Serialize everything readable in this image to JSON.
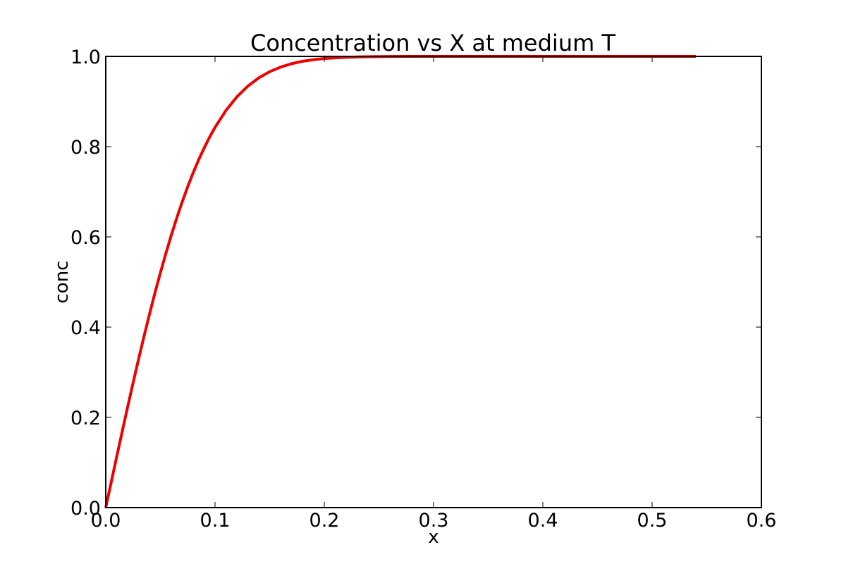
{
  "chart_data": {
    "type": "line",
    "title": "Concentration vs X at medium T",
    "xlabel": "x",
    "ylabel": "conc",
    "xlim": [
      0.0,
      0.6
    ],
    "ylim": [
      0.0,
      1.0
    ],
    "xticks": [
      "0.0",
      "0.1",
      "0.2",
      "0.3",
      "0.4",
      "0.5",
      "0.6"
    ],
    "yticks": [
      "0.0",
      "0.2",
      "0.4",
      "0.6",
      "0.8",
      "1.0"
    ],
    "grid": false,
    "legend": "none",
    "series": [
      {
        "color": "#ee0000",
        "x": [
          0.0,
          0.005,
          0.01,
          0.015,
          0.02,
          0.025,
          0.03,
          0.035,
          0.04,
          0.045,
          0.05,
          0.055,
          0.06,
          0.065,
          0.07,
          0.075,
          0.08,
          0.085,
          0.09,
          0.095,
          0.1,
          0.11,
          0.12,
          0.13,
          0.14,
          0.15,
          0.16,
          0.17,
          0.18,
          0.19,
          0.2,
          0.22,
          0.24,
          0.26,
          0.28,
          0.3,
          0.35,
          0.4,
          0.45,
          0.5,
          0.54
        ],
        "y": [
          0.0,
          0.0564,
          0.1125,
          0.168,
          0.2227,
          0.2763,
          0.3286,
          0.3794,
          0.4284,
          0.4755,
          0.5205,
          0.5633,
          0.6039,
          0.642,
          0.6778,
          0.7112,
          0.7421,
          0.7707,
          0.7969,
          0.8209,
          0.8427,
          0.8802,
          0.9103,
          0.934,
          0.9523,
          0.9661,
          0.9763,
          0.9838,
          0.9891,
          0.9928,
          0.9953,
          0.9981,
          0.9993,
          0.9998,
          0.9999,
          1.0,
          1.0,
          1.0,
          1.0,
          1.0,
          1.0
        ]
      }
    ]
  }
}
